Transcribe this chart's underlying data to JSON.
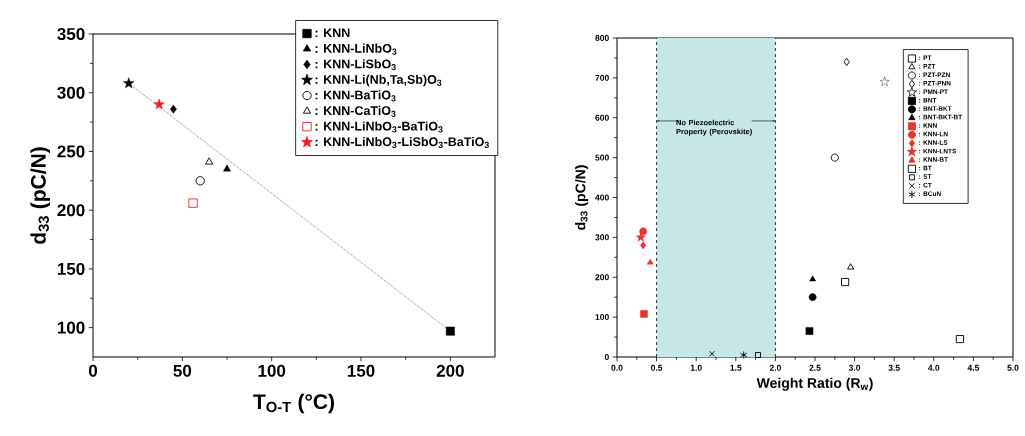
{
  "chart_data": [
    {
      "type": "scatter",
      "xlabel": "T$_{O-T}$ (°C)",
      "ylabel": "d$_{33}$ (pC/N)",
      "xlim": [
        0,
        225
      ],
      "ylim": [
        75,
        350
      ],
      "xticks": [
        0,
        50,
        100,
        150,
        200
      ],
      "yticks": [
        100,
        150,
        200,
        250,
        300,
        350
      ],
      "legend": "top right",
      "series": [
        {
          "name": ": KNN",
          "color": "#000000",
          "marker": "square",
          "x": [
            200
          ],
          "values": [
            97
          ]
        },
        {
          "name": ": KNN-LiNbO$_{3}$",
          "color": "#000000",
          "marker": "triangle",
          "x": [
            75
          ],
          "values": [
            235
          ]
        },
        {
          "name": ": KNN-LiSbO$_{3}$",
          "color": "#000000",
          "marker": "diamond",
          "x": [
            45
          ],
          "values": [
            286
          ]
        },
        {
          "name": ": KNN-Li(Nb,Ta,Sb)O$_{3}$",
          "color": "#000000",
          "marker": "star",
          "x": [
            20
          ],
          "values": [
            308
          ]
        },
        {
          "name": ": KNN-BaTiO$_{3}$",
          "color": "#000000",
          "marker": "circle",
          "x": [
            60
          ],
          "values": [
            225
          ]
        },
        {
          "name": ": KNN-CaTiO$_{3}$",
          "color": "#000000",
          "marker": "triangle",
          "x": [
            65
          ],
          "values": [
            241
          ]
        },
        {
          "name": ": KNN-LiNbO$_{3}$-BaTiO$_{3}$",
          "color": "#e8232a",
          "marker": "square",
          "x": [
            56
          ],
          "values": [
            206
          ]
        },
        {
          "name": ": KNN-LiNbO$_{3}$-LiSbO$_{3}$-BaTiO$_{3}$",
          "color": "#e8232a",
          "marker": "star",
          "x": [
            37
          ],
          "values": [
            290
          ]
        },
        {
          "type": "line",
          "color": "#555555",
          "line_style": "dotted",
          "marker": "none",
          "x": [
            20,
            200
          ],
          "values": [
            308,
            97
          ]
        }
      ]
    },
    {
      "type": "scatter",
      "xlabel": "Weight Ratio (R$_{w}$)",
      "ylabel": "d$_{33}$ (pC/N)",
      "xlim": [
        0,
        5
      ],
      "ylim": [
        0,
        800
      ],
      "xticks": [
        {
          "value": 0,
          "label": "0.0"
        },
        {
          "value": 0.5,
          "label": "0.5"
        },
        {
          "value": 1,
          "label": "1.0"
        },
        {
          "value": 1.5,
          "label": "1.5"
        },
        {
          "value": 2,
          "label": "2.0"
        },
        {
          "value": 2.5,
          "label": "2.5"
        },
        {
          "value": 3,
          "label": "3.0"
        },
        {
          "value": 3.5,
          "label": "3.5"
        },
        {
          "value": 4,
          "label": "4.0"
        },
        {
          "value": 4.5,
          "label": "4.5"
        },
        {
          "value": 5,
          "label": "5.0"
        }
      ],
      "yticks": [
        0,
        100,
        200,
        300,
        400,
        500,
        600,
        700,
        800
      ],
      "legend": "top right",
      "bands": [
        {
          "axis": "x",
          "from": 0.5,
          "to": 2.0,
          "label": "**No Piezoelectric Property** (Perovskite)",
          "color": "#c6e6e8"
        }
      ],
      "series": [
        {
          "name": ": PT",
          "color": "#000000",
          "marker": "square",
          "x": [
            4.33
          ],
          "values": [
            45
          ]
        },
        {
          "name": ": PZT",
          "color": "#000000",
          "marker": "triangle",
          "x": [
            2.95
          ],
          "values": [
            225
          ]
        },
        {
          "name": ": PZT-PZN",
          "color": "#000000",
          "marker": "circle",
          "x": [
            2.75
          ],
          "values": [
            500
          ]
        },
        {
          "name": ": PZT-PNN",
          "color": "#000000",
          "marker": "diamond",
          "x": [
            2.9
          ],
          "values": [
            740
          ]
        },
        {
          "name": ": PMN-PT",
          "color": "#000000",
          "marker": "star",
          "x": [
            3.38
          ],
          "values": [
            690
          ]
        },
        {
          "name": ": BNT",
          "color": "#000000",
          "marker": "square",
          "x": [
            2.43
          ],
          "values": [
            65
          ]
        },
        {
          "name": ": BNT-BKT",
          "color": "#000000",
          "marker": "circle",
          "x": [
            2.47
          ],
          "values": [
            150
          ]
        },
        {
          "name": ": BNT-BKT-BT",
          "color": "#000000",
          "marker": "triangle",
          "x": [
            2.47
          ],
          "values": [
            195
          ]
        },
        {
          "name": ": KNN",
          "color": "#e8322e",
          "marker": "square",
          "x": [
            0.34
          ],
          "values": [
            108
          ]
        },
        {
          "name": ": KNN-LN",
          "color": "#e8322e",
          "marker": "circle",
          "x": [
            0.33
          ],
          "values": [
            315
          ]
        },
        {
          "name": ": KNN-LS",
          "color": "#e8322e",
          "marker": "diamond",
          "x": [
            0.33
          ],
          "values": [
            280
          ]
        },
        {
          "name": ": KNN-LNTS",
          "color": "#e8322e",
          "marker": "star",
          "x": [
            0.3
          ],
          "values": [
            300
          ]
        },
        {
          "name": ": KNN-BT",
          "color": "#e8322e",
          "marker": "triangle",
          "x": [
            0.42
          ],
          "values": [
            237
          ]
        },
        {
          "name": ": BT",
          "color": "#000000",
          "marker": "square",
          "x": [
            2.88
          ],
          "values": [
            188
          ]
        },
        {
          "name": ": ST",
          "color": "#000000",
          "marker": "square",
          "x": [
            1.78
          ],
          "values": [
            5
          ]
        },
        {
          "name": ": CT",
          "color": "#000000",
          "marker": "cross",
          "x": [
            1.2
          ],
          "values": [
            8
          ]
        },
        {
          "name": ": BCuN",
          "color": "#000000",
          "marker": "cross",
          "x": [
            1.6
          ],
          "values": [
            5
          ]
        }
      ]
    }
  ]
}
